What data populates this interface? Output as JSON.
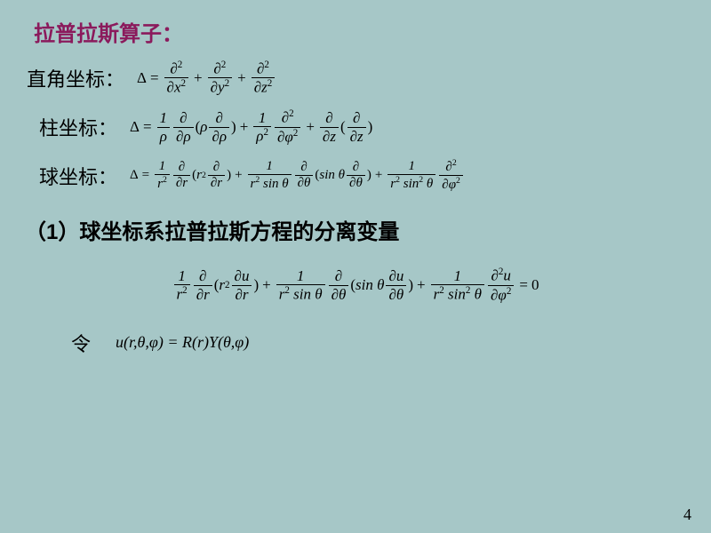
{
  "page": {
    "background": "#a6c7c7",
    "title_color": "#8b1a5c",
    "text_color": "#000000",
    "page_number": "4"
  },
  "title": "拉普拉斯算子：",
  "rows": {
    "cartesian_label": "直角坐标：",
    "cylindrical_label": "柱坐标：",
    "spherical_label": "球坐标："
  },
  "section": "（1）球坐标系拉普拉斯方程的分离变量",
  "let_label": "令",
  "let_eq": "u(r,θ,φ) = R(r)Y(θ,φ)",
  "symbols": {
    "delta": "Δ",
    "partial": "∂",
    "rho": "ρ",
    "phi": "φ",
    "theta": "θ"
  }
}
